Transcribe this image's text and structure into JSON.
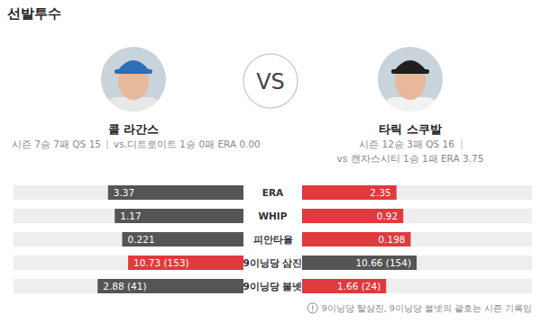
{
  "title": "선발투수",
  "vs": "VS",
  "players": [
    {
      "season": "시즌 7승 7패 QS 15",
      "versus": "vs.디트로이트 1승 0패 ERA 0.00"
    },
    {
      "season": "시즌 12승 3패 QS 16",
      "versus": "vs 캔자스시티 1승 1패 ERA 3.75"
    }
  ],
  "chart_data": {
    "type": "bar",
    "orientation": "horizontal",
    "data_labels": true,
    "categories": [
      "ERA",
      "WHIP",
      "피안타율",
      "9이닝당 삼진",
      "9이닝당 볼넷"
    ],
    "series": [
      {
        "name": "콜 라간스",
        "values": [
          3.37,
          1.17,
          0.221,
          10.73,
          2.88
        ],
        "value_labels": [
          "3.37",
          "1.17",
          "0.221",
          "10.73 (153)",
          "2.88 (41)"
        ],
        "colors": [
          "#555555",
          "#555555",
          "#555555",
          "#e03a3e",
          "#555555"
        ]
      },
      {
        "name": "타릭 스쿠발",
        "values": [
          2.35,
          0.92,
          0.198,
          10.66,
          1.66
        ],
        "value_labels": [
          "2.35",
          "0.92",
          "0.198",
          "10.66 (154)",
          "1.66 (24)"
        ],
        "colors": [
          "#e03a3e",
          "#e03a3e",
          "#e03a3e",
          "#555555",
          "#e03a3e"
        ]
      }
    ]
  },
  "footnote": "9이닝당 탈삼진, 9이닝당 볼넷의 괄호는 시즌 기록임"
}
